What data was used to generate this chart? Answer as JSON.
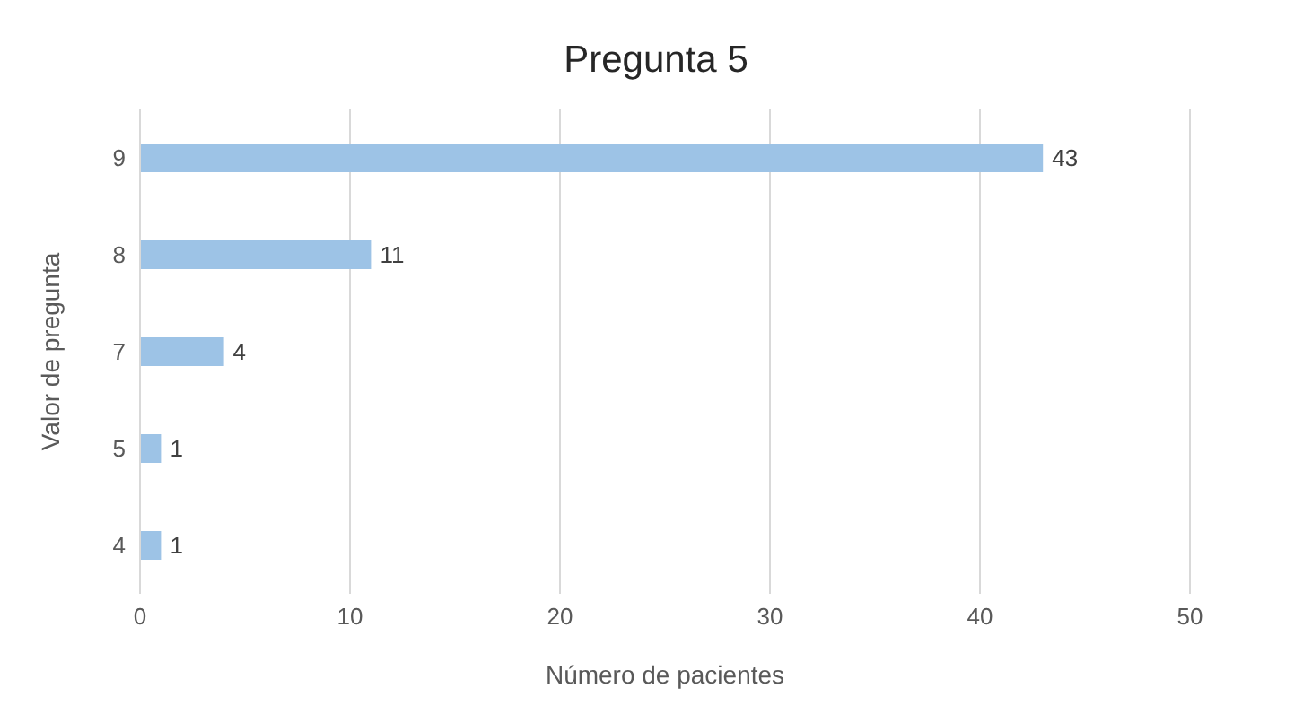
{
  "chart_data": {
    "type": "bar",
    "orientation": "horizontal",
    "title": "Pregunta 5",
    "xlabel": "Número de pacientes",
    "ylabel": "Valor de pregunta",
    "categories": [
      "9",
      "8",
      "7",
      "5",
      "4"
    ],
    "values": [
      43,
      11,
      4,
      1,
      1
    ],
    "color": "#9dc3e6",
    "xlim": [
      0,
      50
    ],
    "xticks": [
      0,
      10,
      20,
      30,
      40,
      50
    ],
    "grid": "x",
    "data_labels": true
  }
}
